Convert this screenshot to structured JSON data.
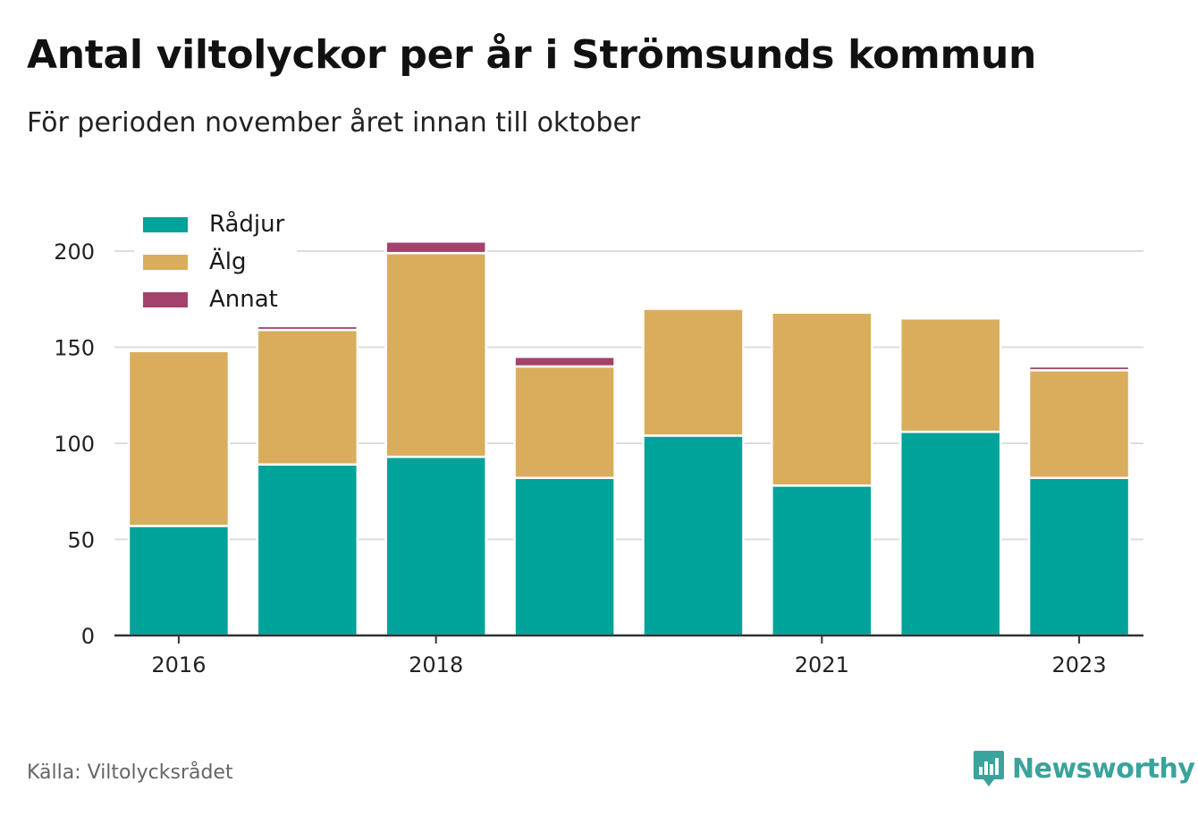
{
  "title": "Antal viltolyckor per år i Strömsunds kommun",
  "subtitle": "För perioden november året innan till oktober",
  "source": "Källa: Viltolycksrådet",
  "brand": {
    "name": "Newsworthy",
    "icon": "newsworthy-logo-icon",
    "color": "#3aa39b"
  },
  "chart_data": {
    "type": "bar",
    "stacked": true,
    "title": "Antal viltolyckor per år i Strömsunds kommun",
    "subtitle": "För perioden november året innan till oktober",
    "categories": [
      "2016",
      "2017",
      "2018",
      "2019",
      "2020",
      "2021",
      "2022",
      "2023"
    ],
    "x_tick_labels": [
      "2016",
      "",
      "2018",
      "",
      "",
      "2021",
      "",
      "2023"
    ],
    "series": [
      {
        "name": "Rådjur",
        "color": "#00a39a",
        "values": [
          57,
          89,
          93,
          82,
          104,
          78,
          106,
          82
        ]
      },
      {
        "name": "Älg",
        "color": "#d9ad5b",
        "values": [
          91,
          70,
          106,
          58,
          66,
          90,
          59,
          56
        ]
      },
      {
        "name": "Annat",
        "color": "#a3426b",
        "values": [
          0,
          2,
          6,
          5,
          0,
          0,
          0,
          2
        ]
      }
    ],
    "ylim": [
      0,
      210
    ],
    "yticks": [
      0,
      50,
      100,
      150,
      200
    ],
    "grid": true,
    "legend_position": "top-left",
    "xlabel": "",
    "ylabel": ""
  }
}
